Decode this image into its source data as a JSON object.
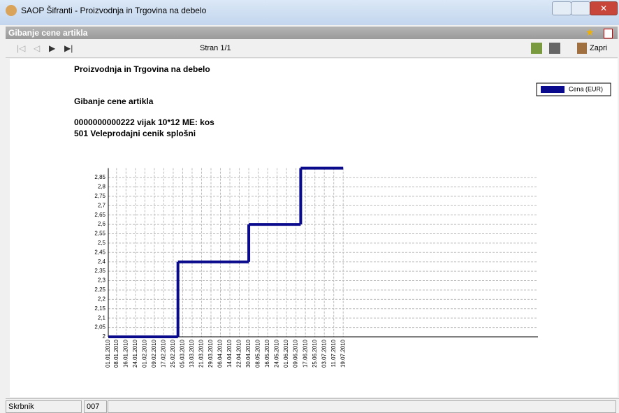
{
  "window": {
    "title": "SAOP Šifranti - Proizvodnja in Trgovina na debelo"
  },
  "panel": {
    "title": "Gibanje cene artikla"
  },
  "toolbar": {
    "page": "Stran 1/1",
    "close": "Zapri"
  },
  "report": {
    "company": "Proizvodnja in Trgovina na debelo",
    "heading": "Gibanje cene artikla",
    "item": "0000000000222 vijak 10*12  ME: kos",
    "pricelist": "501 Veleprodajni cenik splošni"
  },
  "status": {
    "field1": "Skrbnik",
    "field2": "007"
  },
  "chart_data": {
    "type": "line",
    "step": true,
    "x": [
      "01.01.2010",
      "01.03.2010",
      "30.04.2010",
      "13.06.2010",
      "19.07.2010"
    ],
    "series": [
      {
        "name": "Cena (EUR)",
        "color": "#0a0a8c",
        "values": [
          2,
          2.4,
          2.6,
          2.9,
          2.9
        ]
      }
    ],
    "xlim": [
      "01.01.2010",
      "31.12.2010"
    ],
    "xticks": [
      "01.01.2010",
      "08.01.2010",
      "16.01.2010",
      "24.01.2010",
      "01.02.2010",
      "09.02.2010",
      "17.02.2010",
      "25.02.2010",
      "05.03.2010",
      "13.03.2010",
      "21.03.2010",
      "29.03.2010",
      "06.04.2010",
      "14.04.2010",
      "22.04.2010",
      "30.04.2010",
      "08.05.2010",
      "16.05.2010",
      "24.05.2010",
      "01.06.2010",
      "09.06.2010",
      "17.06.2010",
      "25.06.2010",
      "03.07.2010",
      "11.07.2010",
      "19.07.2010"
    ],
    "ylim": [
      2,
      2.9
    ],
    "yticks": [
      2,
      {
        "value": 2.05,
        "label": "2,05"
      },
      {
        "value": 2.1,
        "label": "2,1"
      },
      {
        "value": 2.15,
        "label": "2,15"
      },
      {
        "value": 2.2,
        "label": "2,2"
      },
      {
        "value": 2.25,
        "label": "2,25"
      },
      {
        "value": 2.3,
        "label": "2,3"
      },
      {
        "value": 2.35,
        "label": "2,35"
      },
      {
        "value": 2.4,
        "label": "2,4"
      },
      {
        "value": 2.45,
        "label": "2,45"
      },
      {
        "value": 2.5,
        "label": "2,5"
      },
      {
        "value": 2.55,
        "label": "2,55"
      },
      {
        "value": 2.6,
        "label": "2,6"
      },
      {
        "value": 2.65,
        "label": "2,65"
      },
      {
        "value": 2.7,
        "label": "2,7"
      },
      {
        "value": 2.75,
        "label": "2,75"
      },
      {
        "value": 2.8,
        "label": "2,8"
      },
      {
        "value": 2.85,
        "label": "2,85"
      }
    ],
    "grid": true,
    "legend": "top-right"
  }
}
